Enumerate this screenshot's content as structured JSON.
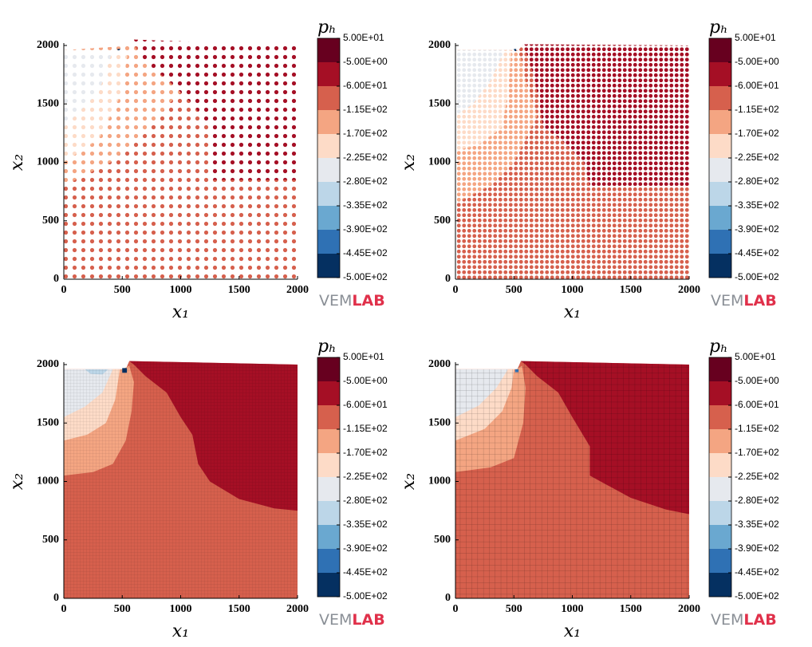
{
  "chart_data": [
    {
      "type": "scatter",
      "x_label": "x₁",
      "y_label": "x₂",
      "xlim": [
        0,
        2000
      ],
      "ylim": [
        0,
        2000
      ],
      "xticks": [
        0,
        500,
        1000,
        1500,
        2000
      ],
      "yticks": [
        0,
        500,
        1000,
        1500,
        2000
      ],
      "colorbar_label": "pₕ",
      "levels": [
        {
          "value": 50,
          "label": "5.00E+01"
        },
        {
          "value": -5,
          "label": "-5.00E+00"
        },
        {
          "value": -60,
          "label": "-6.00E+01"
        },
        {
          "value": -115,
          "label": "-1.15E+02"
        },
        {
          "value": -170,
          "label": "-1.70E+02"
        },
        {
          "value": -225,
          "label": "-2.25E+02"
        },
        {
          "value": -280,
          "label": "-2.80E+02"
        },
        {
          "value": -335,
          "label": "-3.35E+02"
        },
        {
          "value": -390,
          "label": "-3.90E+02"
        },
        {
          "value": -445,
          "label": "-4.45E+02"
        },
        {
          "value": -500,
          "label": "-5.00E+02"
        }
      ],
      "colors": [
        "#67001f",
        "#a50f25",
        "#d6604d",
        "#f4a582",
        "#fddbc7",
        "#e6e9ee",
        "#bcd6e8",
        "#6aa8d0",
        "#2f71b4",
        "#053061"
      ],
      "logo": {
        "left": "VEM",
        "right": "LAB"
      }
    },
    {
      "type": "scatter",
      "x_label": "x₁",
      "y_label": "x₂",
      "xlim": [
        0,
        2000
      ],
      "ylim": [
        0,
        2000
      ],
      "xticks": [
        0,
        500,
        1000,
        1500,
        2000
      ],
      "yticks": [
        0,
        500,
        1000,
        1500,
        2000
      ],
      "colorbar_label": "pₕ",
      "levels": [
        {
          "value": 50,
          "label": "5.00E+01"
        },
        {
          "value": -5,
          "label": "-5.00E+00"
        },
        {
          "value": -60,
          "label": "-6.00E+01"
        },
        {
          "value": -115,
          "label": "-1.15E+02"
        },
        {
          "value": -170,
          "label": "-1.70E+02"
        },
        {
          "value": -225,
          "label": "-2.25E+02"
        },
        {
          "value": -280,
          "label": "-2.80E+02"
        },
        {
          "value": -335,
          "label": "-3.35E+02"
        },
        {
          "value": -390,
          "label": "-3.90E+02"
        },
        {
          "value": -445,
          "label": "-4.45E+02"
        },
        {
          "value": -500,
          "label": "-5.00E+02"
        }
      ],
      "colors": [
        "#67001f",
        "#a50f25",
        "#d6604d",
        "#f4a582",
        "#fddbc7",
        "#e6e9ee",
        "#bcd6e8",
        "#6aa8d0",
        "#2f71b4",
        "#053061"
      ],
      "logo": {
        "left": "VEM",
        "right": "LAB"
      }
    },
    {
      "type": "contour",
      "x_label": "x₁",
      "y_label": "x₂",
      "xlim": [
        0,
        2000
      ],
      "ylim": [
        0,
        2000
      ],
      "xticks": [
        0,
        500,
        1000,
        1500,
        2000
      ],
      "yticks": [
        0,
        500,
        1000,
        1500,
        2000
      ],
      "colorbar_label": "pₕ",
      "levels": [
        {
          "value": 50,
          "label": "5.00E+01"
        },
        {
          "value": -5,
          "label": "-5.00E+00"
        },
        {
          "value": -60,
          "label": "-6.00E+01"
        },
        {
          "value": -115,
          "label": "-1.15E+02"
        },
        {
          "value": -170,
          "label": "-1.70E+02"
        },
        {
          "value": -225,
          "label": "-2.25E+02"
        },
        {
          "value": -280,
          "label": "-2.80E+02"
        },
        {
          "value": -335,
          "label": "-3.35E+02"
        },
        {
          "value": -390,
          "label": "-3.90E+02"
        },
        {
          "value": -445,
          "label": "-4.45E+02"
        },
        {
          "value": -500,
          "label": "-5.00E+02"
        }
      ],
      "colors": [
        "#67001f",
        "#a50f25",
        "#d6604d",
        "#f4a582",
        "#fddbc7",
        "#e6e9ee",
        "#bcd6e8",
        "#6aa8d0",
        "#2f71b4",
        "#053061"
      ],
      "logo": {
        "left": "VEM",
        "right": "LAB"
      }
    },
    {
      "type": "contour",
      "x_label": "x₁",
      "y_label": "x₂",
      "xlim": [
        0,
        2000
      ],
      "ylim": [
        0,
        2000
      ],
      "xticks": [
        0,
        500,
        1000,
        1500,
        2000
      ],
      "yticks": [
        0,
        500,
        1000,
        1500,
        2000
      ],
      "colorbar_label": "pₕ",
      "levels": [
        {
          "value": 50,
          "label": "5.00E+01"
        },
        {
          "value": -5,
          "label": "-5.00E+00"
        },
        {
          "value": -60,
          "label": "-6.00E+01"
        },
        {
          "value": -115,
          "label": "-1.15E+02"
        },
        {
          "value": -170,
          "label": "-1.70E+02"
        },
        {
          "value": -225,
          "label": "-2.25E+02"
        },
        {
          "value": -280,
          "label": "-2.80E+02"
        },
        {
          "value": -335,
          "label": "-3.35E+02"
        },
        {
          "value": -390,
          "label": "-3.90E+02"
        },
        {
          "value": -445,
          "label": "-4.45E+02"
        },
        {
          "value": -500,
          "label": "-5.00E+02"
        }
      ],
      "colors": [
        "#67001f",
        "#a50f25",
        "#d6604d",
        "#f4a582",
        "#fddbc7",
        "#e6e9ee",
        "#bcd6e8",
        "#6aa8d0",
        "#2f71b4",
        "#053061"
      ],
      "logo": {
        "left": "VEM",
        "right": "LAB"
      }
    }
  ]
}
